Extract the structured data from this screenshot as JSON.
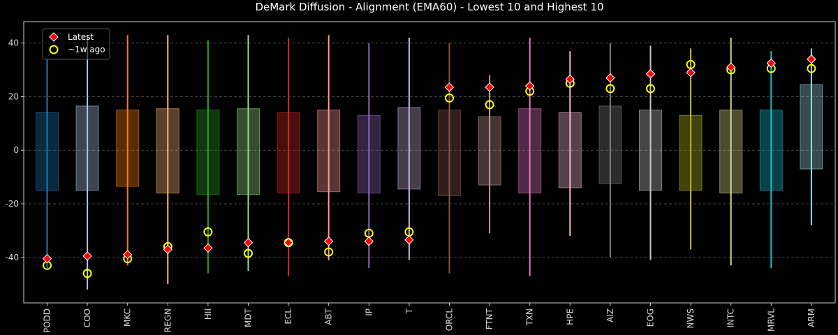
{
  "chart_data": {
    "type": "range-box",
    "title": "DeMark Diffusion - Alignment (EMA60) - Lowest 10 and Highest 10",
    "xlabel": "",
    "ylabel": "",
    "ylim": [
      -57,
      48
    ],
    "yticks": [
      -40,
      -20,
      0,
      20,
      40
    ],
    "grid": true,
    "legend_position": "top-left",
    "legend": [
      {
        "label": "Latest",
        "marker": "diamond",
        "color": "#ff0000",
        "edge": "#ffffff"
      },
      {
        "label": "~1w ago",
        "marker": "circle",
        "color": "none",
        "edge": "#ffff00"
      }
    ],
    "categories": [
      "PODD",
      "COO",
      "MKC",
      "REGN",
      "HII",
      "MDT",
      "ECL",
      "ABT",
      "IP",
      "T",
      "ORCL",
      "FTNT",
      "TXN",
      "HPE",
      "AIZ",
      "EOG",
      "NWS",
      "INTC",
      "MRVL",
      "ARM"
    ],
    "colors": [
      "#1f77b4",
      "#aec7e8",
      "#ff7f0e",
      "#ffbb78",
      "#2ca02c",
      "#98df8a",
      "#d62728",
      "#ff9896",
      "#9467bd",
      "#c5b0d5",
      "#8c564b",
      "#c49c94",
      "#e377c2",
      "#f7b6d2",
      "#7f7f7f",
      "#c7c7c7",
      "#bcbd22",
      "#dbdb8d",
      "#17becf",
      "#9edae5"
    ],
    "whisker_low": [
      -44,
      -52,
      -43,
      -50,
      -46,
      -45,
      -47,
      -41,
      -44,
      -41,
      -46,
      -31,
      -47,
      -32,
      -40,
      -41,
      -37,
      -43,
      -44,
      -28
    ],
    "whisker_high": [
      34,
      43,
      43,
      43,
      41,
      43,
      42,
      43,
      40,
      42,
      40,
      28,
      42,
      37,
      40,
      39,
      38,
      42,
      37,
      38
    ],
    "box_low": [
      -15,
      -15,
      -13.5,
      -16,
      -16.5,
      -16.5,
      -16,
      -15.5,
      -16,
      -14.5,
      -17,
      -13,
      -16,
      -14,
      -12.5,
      -15,
      -15,
      -16,
      -15,
      -7
    ],
    "box_high": [
      14,
      16.5,
      15,
      15.5,
      15,
      15.5,
      14,
      15,
      13,
      16,
      15,
      12.5,
      15.5,
      14,
      16.5,
      15,
      13,
      15,
      15,
      24.5
    ],
    "latest": [
      -40.5,
      -39.5,
      -39,
      -37,
      -36.5,
      -34.5,
      -34.5,
      -34,
      -34,
      -33.5,
      23.5,
      23.5,
      24,
      26.5,
      27,
      28.5,
      29,
      31,
      32.5,
      34
    ],
    "week_ago": [
      -43,
      -46,
      -40.5,
      -36,
      -30.5,
      -38.5,
      -34.5,
      -38,
      -31,
      -30.5,
      19.5,
      17,
      22,
      25,
      23,
      23,
      32,
      30,
      30.5,
      30.5
    ]
  }
}
